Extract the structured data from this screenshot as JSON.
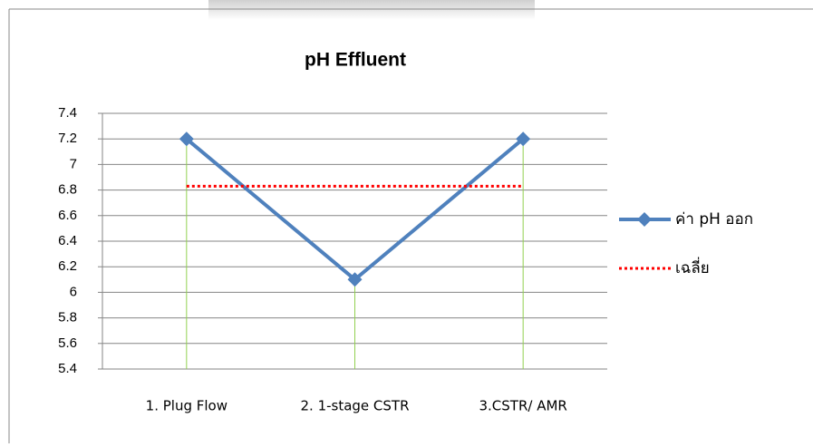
{
  "chart_data": {
    "type": "line",
    "title": "pH Effluent",
    "categories": [
      "1. Plug Flow",
      "2. 1-stage CSTR",
      "3.CSTR/ AMR"
    ],
    "series": [
      {
        "name": "ค่า pH ออก",
        "color": "#4f81bd",
        "values": [
          7.2,
          6.1,
          7.2
        ]
      },
      {
        "name": "เฉลี่ย",
        "color": "#ff0000",
        "values": [
          6.83,
          6.83,
          6.83
        ]
      }
    ],
    "ylim": [
      5.4,
      7.4
    ],
    "yticks": [
      5.4,
      5.6,
      5.8,
      6,
      6.2,
      6.4,
      6.6,
      6.8,
      7,
      7.2,
      7.4
    ],
    "grid": true,
    "drop_lines": true,
    "drop_line_color": "#92d050",
    "legend": "right"
  }
}
